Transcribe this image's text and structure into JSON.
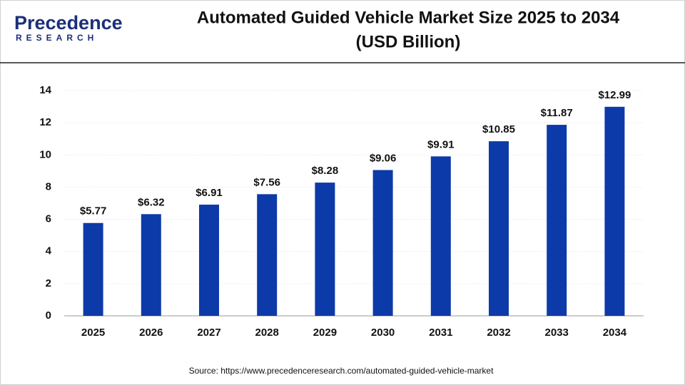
{
  "logo": {
    "name": "Precedence",
    "tagline": "RESEARCH"
  },
  "chart_data": {
    "type": "bar",
    "title": "Automated Guided Vehicle Market Size 2025 to 2034",
    "subtitle": "(USD Billion)",
    "categories": [
      "2025",
      "2026",
      "2027",
      "2028",
      "2029",
      "2030",
      "2031",
      "2032",
      "2033",
      "2034"
    ],
    "values": [
      5.77,
      6.32,
      6.91,
      7.56,
      8.28,
      9.06,
      9.91,
      10.85,
      11.87,
      12.99
    ],
    "value_labels": [
      "$5.77",
      "$6.32",
      "$6.91",
      "$7.56",
      "$8.28",
      "$9.06",
      "$9.91",
      "$10.85",
      "$11.87",
      "$12.99"
    ],
    "color": "#0d3aa9",
    "ylim": [
      0,
      14
    ],
    "yticks": [
      0,
      2,
      4,
      6,
      8,
      10,
      12,
      14
    ],
    "grid": true,
    "source": "Source: https://www.precedenceresearch.com/automated-guided-vehicle-market"
  }
}
